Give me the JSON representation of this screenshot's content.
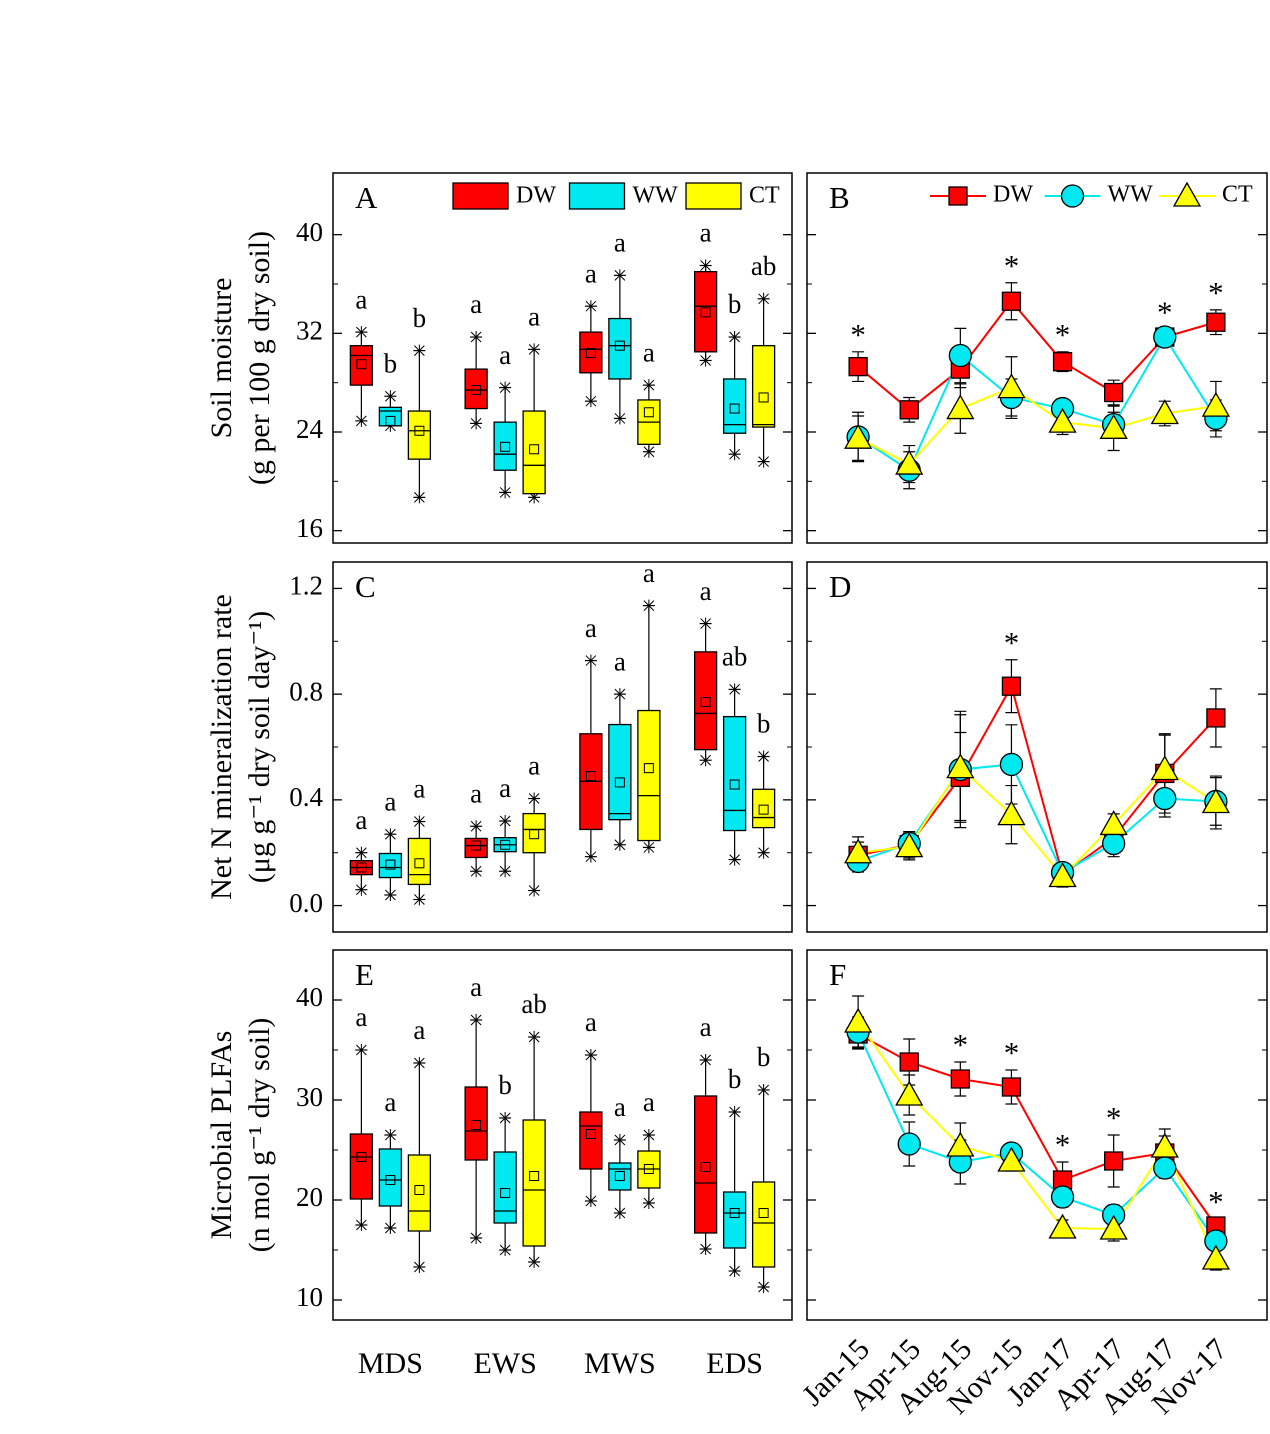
{
  "chart_data": [
    {
      "type": "box",
      "panel_label": "A",
      "y_label": [
        "Soil moisture",
        "(g per 100 g dry soil)"
      ],
      "ylim": [
        15,
        45
      ],
      "yticks": [
        16,
        24,
        32,
        40
      ],
      "legend": true,
      "series": [
        {
          "name": "DW",
          "color": "#ff0000",
          "whisker_low": [
            24.9,
            24.7,
            26.5,
            29.8
          ],
          "q1": [
            27.8,
            25.9,
            28.8,
            30.5
          ],
          "median": [
            30.2,
            27.4,
            30.7,
            34.2
          ],
          "q3": [
            31.0,
            29.1,
            32.1,
            37.0
          ],
          "whisker_high": [
            32.1,
            31.7,
            34.2,
            37.5
          ],
          "mean": [
            29.5,
            27.4,
            30.4,
            33.7
          ],
          "letters": [
            "a",
            "a",
            "a",
            "a"
          ]
        },
        {
          "name": "WW",
          "color": "#00e8f0",
          "whisker_low": [
            24.5,
            19.1,
            25.1,
            22.2
          ],
          "q1": [
            24.5,
            20.9,
            28.3,
            23.9
          ],
          "median": [
            25.7,
            22.2,
            31.0,
            24.6
          ],
          "q3": [
            26.0,
            24.8,
            33.2,
            28.3
          ],
          "whisker_high": [
            26.9,
            27.6,
            36.7,
            31.7
          ],
          "mean": [
            24.9,
            22.8,
            31.0,
            25.9
          ],
          "letters": [
            "b",
            "a",
            "a",
            "b"
          ]
        },
        {
          "name": "CT",
          "color": "#ffff00",
          "whisker_low": [
            18.7,
            18.7,
            22.4,
            21.6
          ],
          "q1": [
            21.8,
            19.0,
            23.0,
            24.4
          ],
          "median": [
            24.1,
            21.3,
            24.8,
            24.6
          ],
          "q3": [
            25.7,
            25.7,
            26.6,
            31.0
          ],
          "whisker_high": [
            30.6,
            30.7,
            27.8,
            34.8
          ],
          "mean": [
            24.1,
            22.6,
            25.6,
            26.8
          ],
          "letters": [
            "b",
            "a",
            "a",
            "ab"
          ]
        }
      ]
    },
    {
      "type": "line",
      "panel_label": "B",
      "ylim": [
        15,
        45
      ],
      "yticks": [
        16,
        24,
        32,
        40
      ],
      "legend": true,
      "significance": [
        "*",
        null,
        null,
        "*",
        "*",
        null,
        "*",
        "*"
      ],
      "series": [
        {
          "name": "DW",
          "color": "#ff0000",
          "marker": "square",
          "values": [
            29.3,
            25.8,
            29.1,
            34.6,
            29.7,
            27.2,
            31.7,
            32.9
          ],
          "errors": [
            1.2,
            1.0,
            1.5,
            1.5,
            0.8,
            1.0,
            0.6,
            1.0
          ]
        },
        {
          "name": "WW",
          "color": "#00e8f0",
          "marker": "circle",
          "values": [
            23.6,
            20.9,
            30.2,
            26.8,
            25.9,
            24.6,
            31.7,
            25.1
          ],
          "errors": [
            2.0,
            1.5,
            2.2,
            1.5,
            0.5,
            1.0,
            0.6,
            1.5
          ]
        },
        {
          "name": "CT",
          "color": "#ffff00",
          "marker": "triangle",
          "values": [
            23.5,
            21.4,
            25.9,
            27.6,
            24.8,
            24.3,
            25.5,
            26.1
          ],
          "errors": [
            1.8,
            1.5,
            2.0,
            2.5,
            1.0,
            1.8,
            1.0,
            2.0
          ]
        }
      ]
    },
    {
      "type": "box",
      "panel_label": "C",
      "y_label": [
        "Net N mineralization rate",
        "(μg g⁻¹ dry soil day⁻¹)"
      ],
      "ylim": [
        -0.1,
        1.3
      ],
      "yticks": [
        {
          "value": 0,
          "label": "0.0"
        },
        0.4,
        0.8,
        1.2
      ],
      "series": [
        {
          "color": "#ff0000",
          "whisker_low": [
            0.06,
            0.13,
            0.185,
            0.55
          ],
          "q1": [
            0.117,
            0.182,
            0.288,
            0.59
          ],
          "median": [
            0.144,
            0.227,
            0.47,
            0.727
          ],
          "q3": [
            0.17,
            0.254,
            0.65,
            0.96
          ],
          "whisker_high": [
            0.2,
            0.3,
            0.927,
            1.067
          ],
          "mean": [
            0.144,
            0.227,
            0.49,
            0.77
          ],
          "letters": [
            "a",
            "a",
            "a",
            "a"
          ]
        },
        {
          "color": "#00e8f0",
          "whisker_low": [
            0.04,
            0.13,
            0.23,
            0.174
          ],
          "q1": [
            0.106,
            0.204,
            0.325,
            0.284
          ],
          "median": [
            0.144,
            0.23,
            0.348,
            0.36
          ],
          "q3": [
            0.197,
            0.257,
            0.685,
            0.715
          ],
          "whisker_high": [
            0.27,
            0.32,
            0.8,
            0.818
          ],
          "mean": [
            0.155,
            0.23,
            0.466,
            0.458
          ],
          "letters": [
            "a",
            "a",
            "a",
            "ab"
          ]
        },
        {
          "color": "#ffff00",
          "whisker_low": [
            0.023,
            0.057,
            0.22,
            0.2
          ],
          "q1": [
            0.08,
            0.2,
            0.246,
            0.295
          ],
          "median": [
            0.117,
            0.288,
            0.416,
            0.333
          ],
          "q3": [
            0.254,
            0.348,
            0.738,
            0.44
          ],
          "whisker_high": [
            0.318,
            0.405,
            1.135,
            0.564
          ],
          "mean": [
            0.16,
            0.27,
            0.52,
            0.363
          ],
          "letters": [
            "a",
            "a",
            "a",
            "b"
          ]
        }
      ]
    },
    {
      "type": "line",
      "panel_label": "D",
      "ylim": [
        -0.1,
        1.3
      ],
      "yticks": [
        0,
        0.4,
        0.8,
        1.2
      ],
      "significance": [
        null,
        null,
        null,
        "*",
        null,
        null,
        null,
        null
      ],
      "series": [
        {
          "color": "#ff0000",
          "marker": "square",
          "values": [
            0.19,
            0.23,
            0.485,
            0.83,
            0.117,
            0.257,
            0.5,
            0.71
          ],
          "errors": [
            0.05,
            0.05,
            0.17,
            0.1,
            0.03,
            0.05,
            0.15,
            0.11
          ]
        },
        {
          "color": "#00e8f0",
          "marker": "circle",
          "values": [
            0.167,
            0.235,
            0.515,
            0.534,
            0.125,
            0.235,
            0.405,
            0.394
          ],
          "errors": [
            0.04,
            0.04,
            0.22,
            0.15,
            0.03,
            0.05,
            0.07,
            0.09
          ]
        },
        {
          "color": "#ffff00",
          "marker": "triangle",
          "values": [
            0.2,
            0.223,
            0.522,
            0.344,
            0.11,
            0.307,
            0.515,
            0.39
          ],
          "errors": [
            0.06,
            0.05,
            0.2,
            0.11,
            0.04,
            0.04,
            0.13,
            0.1
          ]
        }
      ]
    },
    {
      "type": "box",
      "panel_label": "E",
      "y_label": [
        "Microbial PLFAs",
        "(n mol g⁻¹ dry soil)"
      ],
      "ylim": [
        8,
        45
      ],
      "yticks": [
        10,
        20,
        30,
        40
      ],
      "categories": [
        "MDS",
        "EWS",
        "MWS",
        "EDS"
      ],
      "series": [
        {
          "color": "#ff0000",
          "whisker_low": [
            17.5,
            16.2,
            19.9,
            15.1
          ],
          "q1": [
            20.1,
            24.0,
            23.1,
            16.7
          ],
          "median": [
            24.3,
            26.9,
            27.4,
            21.7
          ],
          "q3": [
            26.6,
            31.3,
            28.8,
            30.4
          ],
          "whisker_high": [
            35.0,
            38.0,
            34.5,
            34.0
          ],
          "mean": [
            24.3,
            27.5,
            26.6,
            23.3
          ],
          "letters": [
            "a",
            "a",
            "a",
            "a"
          ]
        },
        {
          "color": "#00e8f0",
          "whisker_low": [
            17.2,
            15.0,
            18.7,
            12.9
          ],
          "q1": [
            19.4,
            17.7,
            21.0,
            15.2
          ],
          "median": [
            22.0,
            18.9,
            23.1,
            18.7
          ],
          "q3": [
            25.1,
            24.8,
            23.7,
            20.8
          ],
          "whisker_high": [
            26.5,
            28.2,
            26.0,
            28.8
          ],
          "mean": [
            22.0,
            20.7,
            22.4,
            18.7
          ],
          "letters": [
            "a",
            "b",
            "a",
            "b"
          ]
        },
        {
          "color": "#ffff00",
          "whisker_low": [
            13.3,
            13.8,
            19.7,
            11.3
          ],
          "q1": [
            16.9,
            15.4,
            21.2,
            13.3
          ],
          "median": [
            18.9,
            21.0,
            23.1,
            17.7
          ],
          "q3": [
            24.5,
            28.0,
            24.9,
            21.8
          ],
          "whisker_high": [
            33.7,
            36.3,
            26.5,
            31.0
          ],
          "mean": [
            21.0,
            22.4,
            23.1,
            18.7
          ],
          "letters": [
            "a",
            "ab",
            "a",
            "b"
          ]
        }
      ]
    },
    {
      "type": "line",
      "panel_label": "F",
      "ylim": [
        8,
        45
      ],
      "yticks": [
        10,
        20,
        30,
        40
      ],
      "categories": [
        "Jan-15",
        "Apr-15",
        "Aug-15",
        "Nov-15",
        "Jan-17",
        "Apr-17",
        "Aug-17",
        "Nov-17"
      ],
      "significance": [
        null,
        null,
        "*",
        "*",
        "*",
        "*",
        null,
        "*"
      ],
      "series": [
        {
          "color": "#ff0000",
          "marker": "square",
          "values": [
            36.6,
            33.8,
            32.1,
            31.3,
            22.0,
            23.9,
            24.7,
            17.4
          ],
          "errors": [
            1.5,
            2.3,
            1.7,
            1.7,
            1.8,
            2.6,
            1.7,
            0.7
          ]
        },
        {
          "color": "#00e8f0",
          "marker": "circle",
          "values": [
            36.8,
            25.6,
            23.8,
            24.7,
            20.3,
            18.5,
            23.2,
            15.9
          ],
          "errors": [
            1.5,
            2.2,
            2.2,
            0.7,
            1.0,
            1.0,
            1.0,
            0.8
          ]
        },
        {
          "color": "#ffff00",
          "marker": "triangle",
          "values": [
            37.8,
            30.5,
            25.4,
            23.9,
            17.2,
            17.1,
            25.3,
            14.1
          ],
          "errors": [
            2.6,
            2.0,
            2.3,
            1.0,
            0.8,
            1.2,
            1.8,
            1.1
          ]
        }
      ]
    }
  ]
}
